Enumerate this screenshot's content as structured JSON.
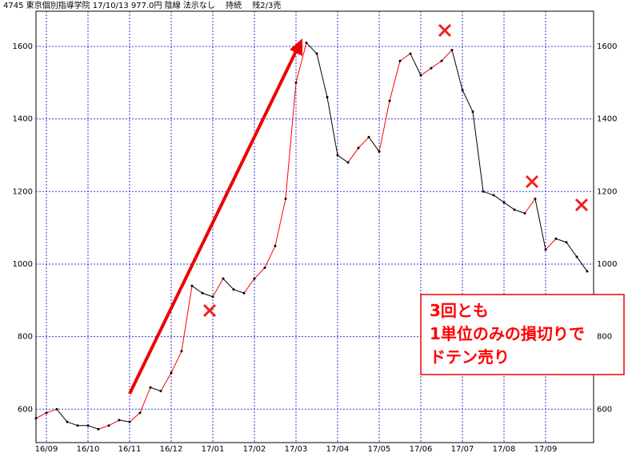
{
  "chart_data": {
    "type": "line",
    "title": "4745 東京個別指導学院 17/10/13 977.0円 陰線 法示なし　 持続　 残2/3売",
    "annotation": [
      "3回とも",
      "1単位のみの損切りで",
      "ドテン売り"
    ],
    "categories": [
      null,
      "16/09",
      null,
      null,
      null,
      "16/10",
      null,
      null,
      null,
      "16/11",
      null,
      null,
      null,
      "16/12",
      null,
      null,
      null,
      "17/01",
      null,
      null,
      null,
      "17/02",
      null,
      null,
      null,
      "17/03",
      null,
      null,
      null,
      "17/04",
      null,
      null,
      null,
      "17/05",
      null,
      null,
      null,
      "17/06",
      null,
      null,
      null,
      "17/07",
      null,
      null,
      null,
      "17/08",
      null,
      null,
      null,
      "17/09",
      null,
      null,
      null,
      null
    ],
    "series": [
      {
        "color": "#000000",
        "up_color": "#ff0000",
        "values": [
          575,
          590,
          600,
          565,
          555,
          555,
          545,
          555,
          570,
          565,
          590,
          660,
          650,
          700,
          760,
          940,
          920,
          910,
          960,
          930,
          920,
          960,
          990,
          1050,
          1180,
          1500,
          1610,
          1580,
          1460,
          1300,
          1280,
          1320,
          1350,
          1310,
          1450,
          1560,
          1580,
          1520,
          1540,
          1560,
          1590,
          1480,
          1420,
          1200,
          1190,
          1170,
          1150,
          1140,
          1180,
          1040,
          1070,
          1060,
          1020,
          980
        ]
      }
    ],
    "ylim": [
      508,
      1697
    ],
    "yticks": [
      600,
      800,
      1000,
      1200,
      1400,
      1600
    ],
    "grid": true
  }
}
